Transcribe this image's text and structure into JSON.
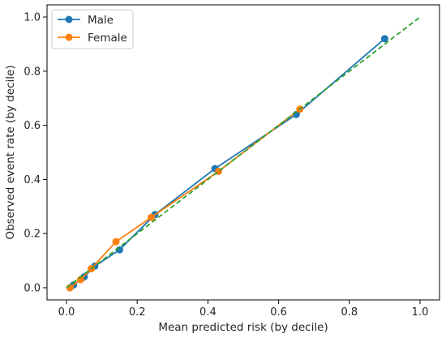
{
  "chart_data": {
    "type": "line",
    "title": "",
    "xlabel": "Mean predicted risk (by decile)",
    "ylabel": "Observed event rate (by decile)",
    "xlim": [
      -0.055,
      1.055
    ],
    "ylim": [
      -0.045,
      1.045
    ],
    "xticks": [
      "0.0",
      "0.2",
      "0.4",
      "0.6",
      "0.8",
      "1.0"
    ],
    "yticks": [
      "0.0",
      "0.2",
      "0.4",
      "0.6",
      "0.8",
      "1.0"
    ],
    "grid": false,
    "legend_position": "top-left",
    "series": [
      {
        "name": "Male",
        "color": "#1f77b4",
        "marker": "circle",
        "x": [
          0.01,
          0.02,
          0.05,
          0.08,
          0.15,
          0.25,
          0.42,
          0.65,
          0.9
        ],
        "y": [
          0.0,
          0.01,
          0.04,
          0.08,
          0.14,
          0.27,
          0.44,
          0.64,
          0.92
        ]
      },
      {
        "name": "Female",
        "color": "#ff7f0e",
        "marker": "circle",
        "x": [
          0.01,
          0.04,
          0.07,
          0.14,
          0.24,
          0.43,
          0.66
        ],
        "y": [
          0.0,
          0.03,
          0.07,
          0.17,
          0.26,
          0.43,
          0.66
        ]
      }
    ],
    "reference_line": {
      "style": "dashed",
      "color": "#2ca02c",
      "x": [
        0.0,
        1.0
      ],
      "y": [
        0.0,
        1.0
      ]
    }
  }
}
